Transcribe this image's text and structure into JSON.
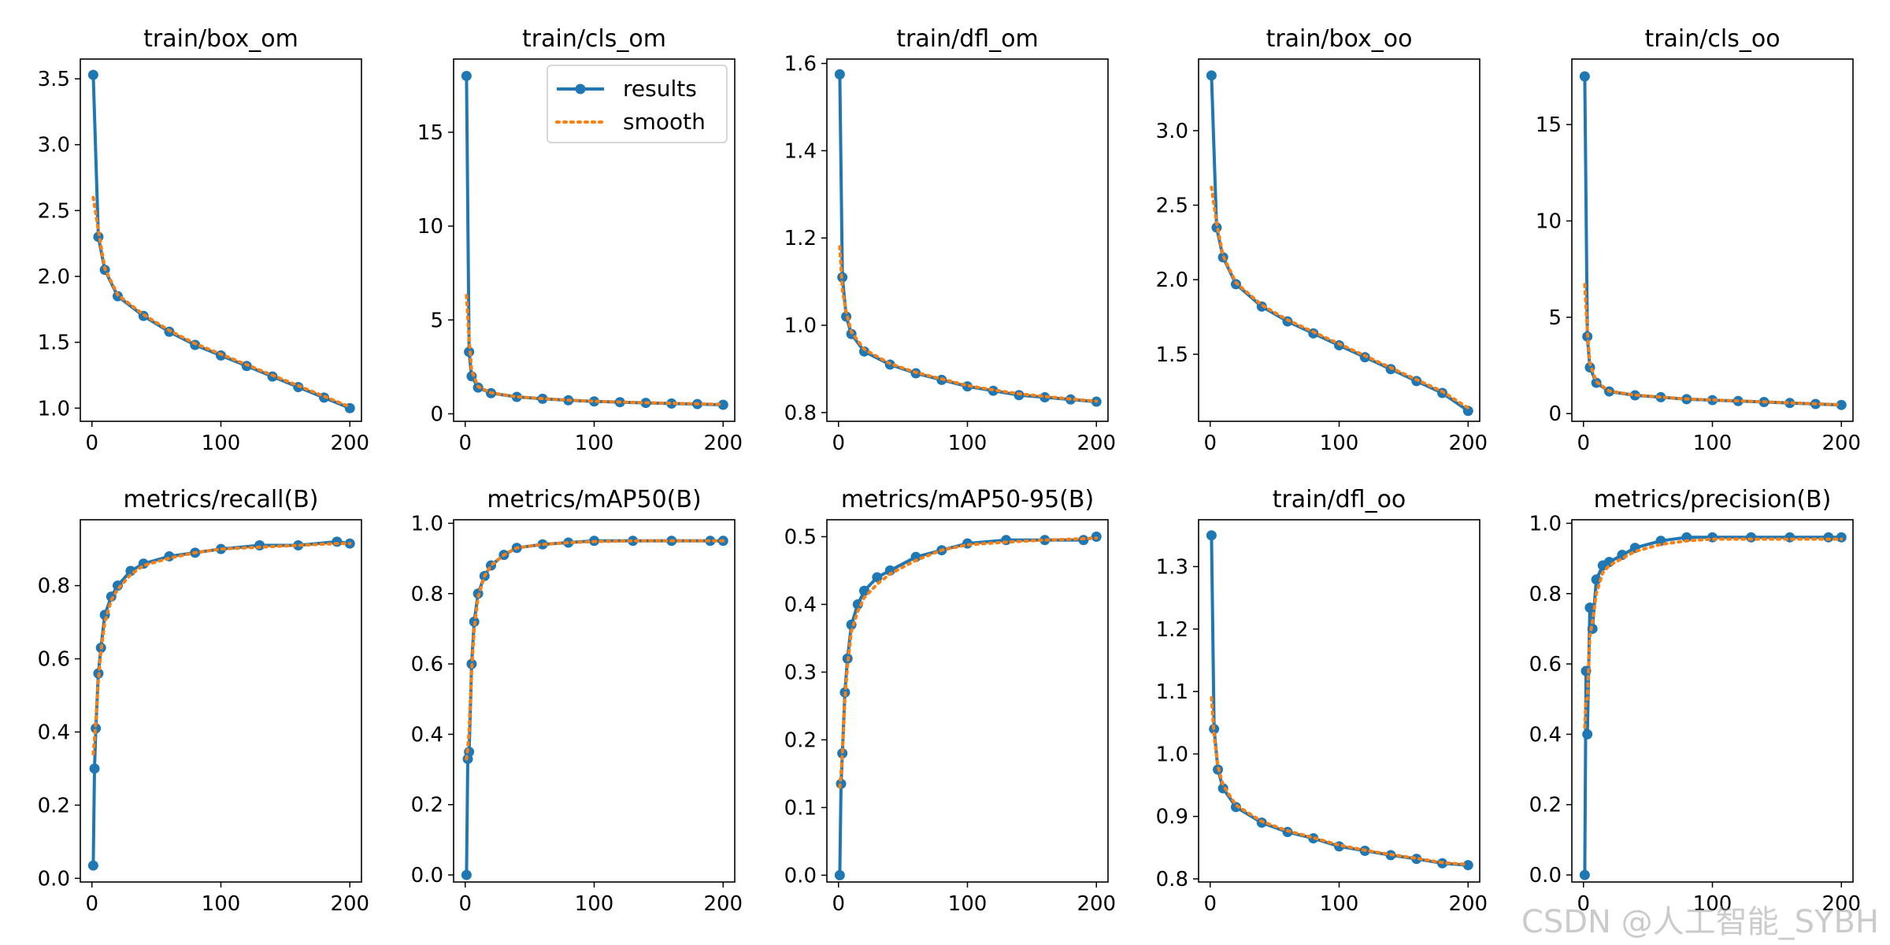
{
  "watermark": "CSDN @人工智能_SYBH",
  "legend": {
    "results": "results",
    "smooth": "smooth"
  },
  "colors": {
    "results": "#1f77b4",
    "smooth": "#ff7f0e",
    "axis": "#000000",
    "bg": "#ffffff"
  },
  "chart_data": [
    {
      "type": "line",
      "title": "train/box_om",
      "xlim": [
        -9,
        209
      ],
      "ylim": [
        0.9,
        3.65
      ],
      "xticks": [
        0,
        100,
        200
      ],
      "yticks": [
        1.0,
        1.5,
        2.0,
        2.5,
        3.0,
        3.5
      ],
      "ytick_labels": [
        "1.0",
        "1.5",
        "2.0",
        "2.5",
        "3.0",
        "3.5"
      ],
      "x": [
        1,
        5,
        10,
        20,
        40,
        60,
        80,
        100,
        120,
        140,
        160,
        180,
        200
      ],
      "series": [
        {
          "name": "results",
          "values": [
            3.53,
            2.3,
            2.05,
            1.85,
            1.7,
            1.58,
            1.48,
            1.4,
            1.32,
            1.24,
            1.16,
            1.08,
            1.0
          ]
        },
        {
          "name": "smooth",
          "values": [
            2.6,
            2.35,
            2.06,
            1.86,
            1.71,
            1.59,
            1.49,
            1.41,
            1.33,
            1.25,
            1.17,
            1.09,
            1.01
          ]
        }
      ]
    },
    {
      "type": "line",
      "title": "train/cls_om",
      "xlim": [
        -9,
        209
      ],
      "ylim": [
        -0.4,
        18.9
      ],
      "xticks": [
        0,
        100,
        200
      ],
      "yticks": [
        0,
        5,
        10,
        15
      ],
      "ytick_labels": [
        "0",
        "5",
        "10",
        "15"
      ],
      "legend": true,
      "x": [
        1,
        3,
        5,
        10,
        20,
        40,
        60,
        80,
        100,
        120,
        140,
        160,
        180,
        200
      ],
      "series": [
        {
          "name": "results",
          "values": [
            18.0,
            3.3,
            2.0,
            1.4,
            1.1,
            0.9,
            0.8,
            0.72,
            0.66,
            0.62,
            0.58,
            0.55,
            0.52,
            0.48
          ]
        },
        {
          "name": "smooth",
          "values": [
            6.3,
            4.0,
            2.3,
            1.45,
            1.12,
            0.91,
            0.81,
            0.73,
            0.67,
            0.63,
            0.59,
            0.56,
            0.53,
            0.5
          ]
        }
      ]
    },
    {
      "type": "line",
      "title": "train/dfl_om",
      "xlim": [
        -9,
        209
      ],
      "ylim": [
        0.78,
        1.61
      ],
      "xticks": [
        0,
        100,
        200
      ],
      "yticks": [
        0.8,
        1.0,
        1.2,
        1.4,
        1.6
      ],
      "ytick_labels": [
        "0.8",
        "1.0",
        "1.2",
        "1.4",
        "1.6"
      ],
      "x": [
        1,
        3,
        6,
        10,
        20,
        40,
        60,
        80,
        100,
        120,
        140,
        160,
        180,
        200
      ],
      "series": [
        {
          "name": "results",
          "values": [
            1.575,
            1.11,
            1.02,
            0.98,
            0.94,
            0.91,
            0.89,
            0.875,
            0.86,
            0.85,
            0.84,
            0.835,
            0.83,
            0.825
          ]
        },
        {
          "name": "smooth",
          "values": [
            1.18,
            1.08,
            1.03,
            0.985,
            0.945,
            0.912,
            0.892,
            0.877,
            0.862,
            0.852,
            0.843,
            0.837,
            0.831,
            0.826
          ]
        }
      ]
    },
    {
      "type": "line",
      "title": "train/box_oo",
      "xlim": [
        -9,
        209
      ],
      "ylim": [
        1.05,
        3.48
      ],
      "xticks": [
        0,
        100,
        200
      ],
      "yticks": [
        1.5,
        2.0,
        2.5,
        3.0
      ],
      "ytick_labels": [
        "1.5",
        "2.0",
        "2.5",
        "3.0"
      ],
      "x": [
        1,
        5,
        10,
        20,
        40,
        60,
        80,
        100,
        120,
        140,
        160,
        180,
        200
      ],
      "series": [
        {
          "name": "results",
          "values": [
            3.37,
            2.35,
            2.15,
            1.97,
            1.82,
            1.72,
            1.64,
            1.56,
            1.48,
            1.4,
            1.32,
            1.24,
            1.12
          ]
        },
        {
          "name": "smooth",
          "values": [
            2.62,
            2.38,
            2.16,
            1.98,
            1.83,
            1.73,
            1.65,
            1.57,
            1.49,
            1.41,
            1.33,
            1.25,
            1.14
          ]
        }
      ]
    },
    {
      "type": "line",
      "title": "train/cls_oo",
      "xlim": [
        -9,
        209
      ],
      "ylim": [
        -0.4,
        18.4
      ],
      "xticks": [
        0,
        100,
        200
      ],
      "yticks": [
        0,
        5,
        10,
        15
      ],
      "ytick_labels": [
        "0",
        "5",
        "10",
        "15"
      ],
      "x": [
        1,
        3,
        5,
        10,
        20,
        40,
        60,
        80,
        100,
        120,
        140,
        160,
        180,
        200
      ],
      "series": [
        {
          "name": "results",
          "values": [
            17.5,
            4.0,
            2.4,
            1.6,
            1.15,
            0.95,
            0.85,
            0.75,
            0.7,
            0.65,
            0.6,
            0.55,
            0.5,
            0.45
          ]
        },
        {
          "name": "smooth",
          "values": [
            6.7,
            4.3,
            2.6,
            1.65,
            1.17,
            0.96,
            0.86,
            0.76,
            0.71,
            0.66,
            0.61,
            0.56,
            0.51,
            0.46
          ]
        }
      ]
    },
    {
      "type": "line",
      "title": "metrics/recall(B)",
      "xlim": [
        -9,
        209
      ],
      "ylim": [
        -0.01,
        0.98
      ],
      "xticks": [
        0,
        100,
        200
      ],
      "yticks": [
        0.0,
        0.2,
        0.4,
        0.6,
        0.8
      ],
      "ytick_labels": [
        "0.0",
        "0.2",
        "0.4",
        "0.6",
        "0.8"
      ],
      "x": [
        1,
        2,
        3,
        5,
        7,
        10,
        15,
        20,
        30,
        40,
        60,
        80,
        100,
        130,
        160,
        190,
        200
      ],
      "series": [
        {
          "name": "results",
          "values": [
            0.035,
            0.3,
            0.41,
            0.56,
            0.63,
            0.72,
            0.77,
            0.8,
            0.84,
            0.86,
            0.88,
            0.89,
            0.9,
            0.91,
            0.91,
            0.92,
            0.915
          ]
        },
        {
          "name": "smooth",
          "values": [
            0.34,
            0.38,
            0.43,
            0.54,
            0.62,
            0.7,
            0.76,
            0.79,
            0.83,
            0.855,
            0.875,
            0.89,
            0.9,
            0.905,
            0.91,
            0.915,
            0.915
          ]
        }
      ]
    },
    {
      "type": "line",
      "title": "metrics/mAP50(B)",
      "xlim": [
        -9,
        209
      ],
      "ylim": [
        -0.02,
        1.01
      ],
      "xticks": [
        0,
        100,
        200
      ],
      "yticks": [
        0.0,
        0.2,
        0.4,
        0.6,
        0.8,
        1.0
      ],
      "ytick_labels": [
        "0.0",
        "0.2",
        "0.4",
        "0.6",
        "0.8",
        "1.0"
      ],
      "x": [
        1,
        2,
        3,
        5,
        7,
        10,
        15,
        20,
        30,
        40,
        60,
        80,
        100,
        130,
        160,
        190,
        200
      ],
      "series": [
        {
          "name": "results",
          "values": [
            0.0,
            0.33,
            0.35,
            0.6,
            0.72,
            0.8,
            0.85,
            0.88,
            0.91,
            0.93,
            0.94,
            0.945,
            0.95,
            0.95,
            0.95,
            0.95,
            0.95
          ]
        },
        {
          "name": "smooth",
          "values": [
            0.33,
            0.36,
            0.41,
            0.58,
            0.7,
            0.79,
            0.85,
            0.88,
            0.91,
            0.93,
            0.94,
            0.945,
            0.948,
            0.95,
            0.95,
            0.95,
            0.95
          ]
        }
      ]
    },
    {
      "type": "line",
      "title": "metrics/mAP50-95(B)",
      "xlim": [
        -9,
        209
      ],
      "ylim": [
        -0.01,
        0.525
      ],
      "xticks": [
        0,
        100,
        200
      ],
      "yticks": [
        0.0,
        0.1,
        0.2,
        0.3,
        0.4,
        0.5
      ],
      "ytick_labels": [
        "0.0",
        "0.1",
        "0.2",
        "0.3",
        "0.4",
        "0.5"
      ],
      "x": [
        1,
        2,
        3,
        5,
        7,
        10,
        15,
        20,
        30,
        40,
        60,
        80,
        100,
        130,
        160,
        190,
        200
      ],
      "series": [
        {
          "name": "results",
          "values": [
            0.0,
            0.135,
            0.18,
            0.27,
            0.32,
            0.37,
            0.4,
            0.42,
            0.44,
            0.45,
            0.47,
            0.48,
            0.49,
            0.495,
            0.495,
            0.495,
            0.5
          ]
        },
        {
          "name": "smooth",
          "values": [
            0.13,
            0.15,
            0.18,
            0.26,
            0.31,
            0.36,
            0.39,
            0.41,
            0.43,
            0.445,
            0.465,
            0.48,
            0.488,
            0.492,
            0.495,
            0.497,
            0.498
          ]
        }
      ]
    },
    {
      "type": "line",
      "title": "train/dfl_oo",
      "xlim": [
        -9,
        209
      ],
      "ylim": [
        0.795,
        1.375
      ],
      "xticks": [
        0,
        100,
        200
      ],
      "yticks": [
        0.8,
        0.9,
        1.0,
        1.1,
        1.2,
        1.3
      ],
      "ytick_labels": [
        "0.8",
        "0.9",
        "1.0",
        "1.1",
        "1.2",
        "1.3"
      ],
      "x": [
        1,
        3,
        6,
        10,
        20,
        40,
        60,
        80,
        100,
        120,
        140,
        160,
        180,
        200
      ],
      "series": [
        {
          "name": "results",
          "values": [
            1.35,
            1.04,
            0.975,
            0.945,
            0.915,
            0.89,
            0.875,
            0.865,
            0.852,
            0.845,
            0.838,
            0.832,
            0.825,
            0.822
          ]
        },
        {
          "name": "smooth",
          "values": [
            1.09,
            1.03,
            0.98,
            0.95,
            0.918,
            0.892,
            0.877,
            0.866,
            0.854,
            0.846,
            0.839,
            0.833,
            0.826,
            0.823
          ]
        }
      ]
    },
    {
      "type": "line",
      "title": "metrics/precision(B)",
      "xlim": [
        -9,
        209
      ],
      "ylim": [
        -0.02,
        1.01
      ],
      "xticks": [
        0,
        100,
        200
      ],
      "yticks": [
        0.0,
        0.2,
        0.4,
        0.6,
        0.8,
        1.0
      ],
      "ytick_labels": [
        "0.0",
        "0.2",
        "0.4",
        "0.6",
        "0.8",
        "1.0"
      ],
      "x": [
        1,
        2,
        3,
        5,
        7,
        10,
        15,
        20,
        30,
        40,
        60,
        80,
        100,
        130,
        160,
        190,
        200
      ],
      "series": [
        {
          "name": "results",
          "values": [
            0.0,
            0.58,
            0.4,
            0.76,
            0.7,
            0.84,
            0.88,
            0.89,
            0.91,
            0.93,
            0.95,
            0.96,
            0.96,
            0.96,
            0.96,
            0.96,
            0.96
          ]
        },
        {
          "name": "smooth",
          "values": [
            0.42,
            0.5,
            0.5,
            0.68,
            0.72,
            0.8,
            0.86,
            0.88,
            0.9,
            0.92,
            0.94,
            0.95,
            0.955,
            0.955,
            0.955,
            0.955,
            0.955
          ]
        }
      ]
    }
  ]
}
